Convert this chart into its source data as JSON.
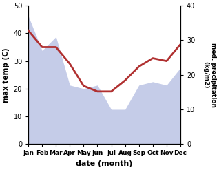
{
  "months": [
    "Jan",
    "Feb",
    "Mar",
    "Apr",
    "May",
    "Jun",
    "Jul",
    "Aug",
    "Sep",
    "Oct",
    "Nov",
    "Dec"
  ],
  "temperature": [
    41,
    35,
    35,
    29,
    21,
    19,
    19,
    23,
    28,
    31,
    30,
    36
  ],
  "precipitation": [
    37,
    27,
    31,
    17,
    16,
    17,
    10,
    10,
    17,
    18,
    17,
    22
  ],
  "temp_color": "#b03030",
  "precip_color_fill": "#c5cce8",
  "left_ylim": [
    0,
    50
  ],
  "right_ylim": [
    0,
    40
  ],
  "left_yticks": [
    0,
    10,
    20,
    30,
    40,
    50
  ],
  "right_yticks": [
    0,
    10,
    20,
    30,
    40
  ],
  "xlabel": "date (month)",
  "ylabel_left": "max temp (C)",
  "ylabel_right": "med. precipitation\n(kg/m2)",
  "temp_linewidth": 2.0
}
